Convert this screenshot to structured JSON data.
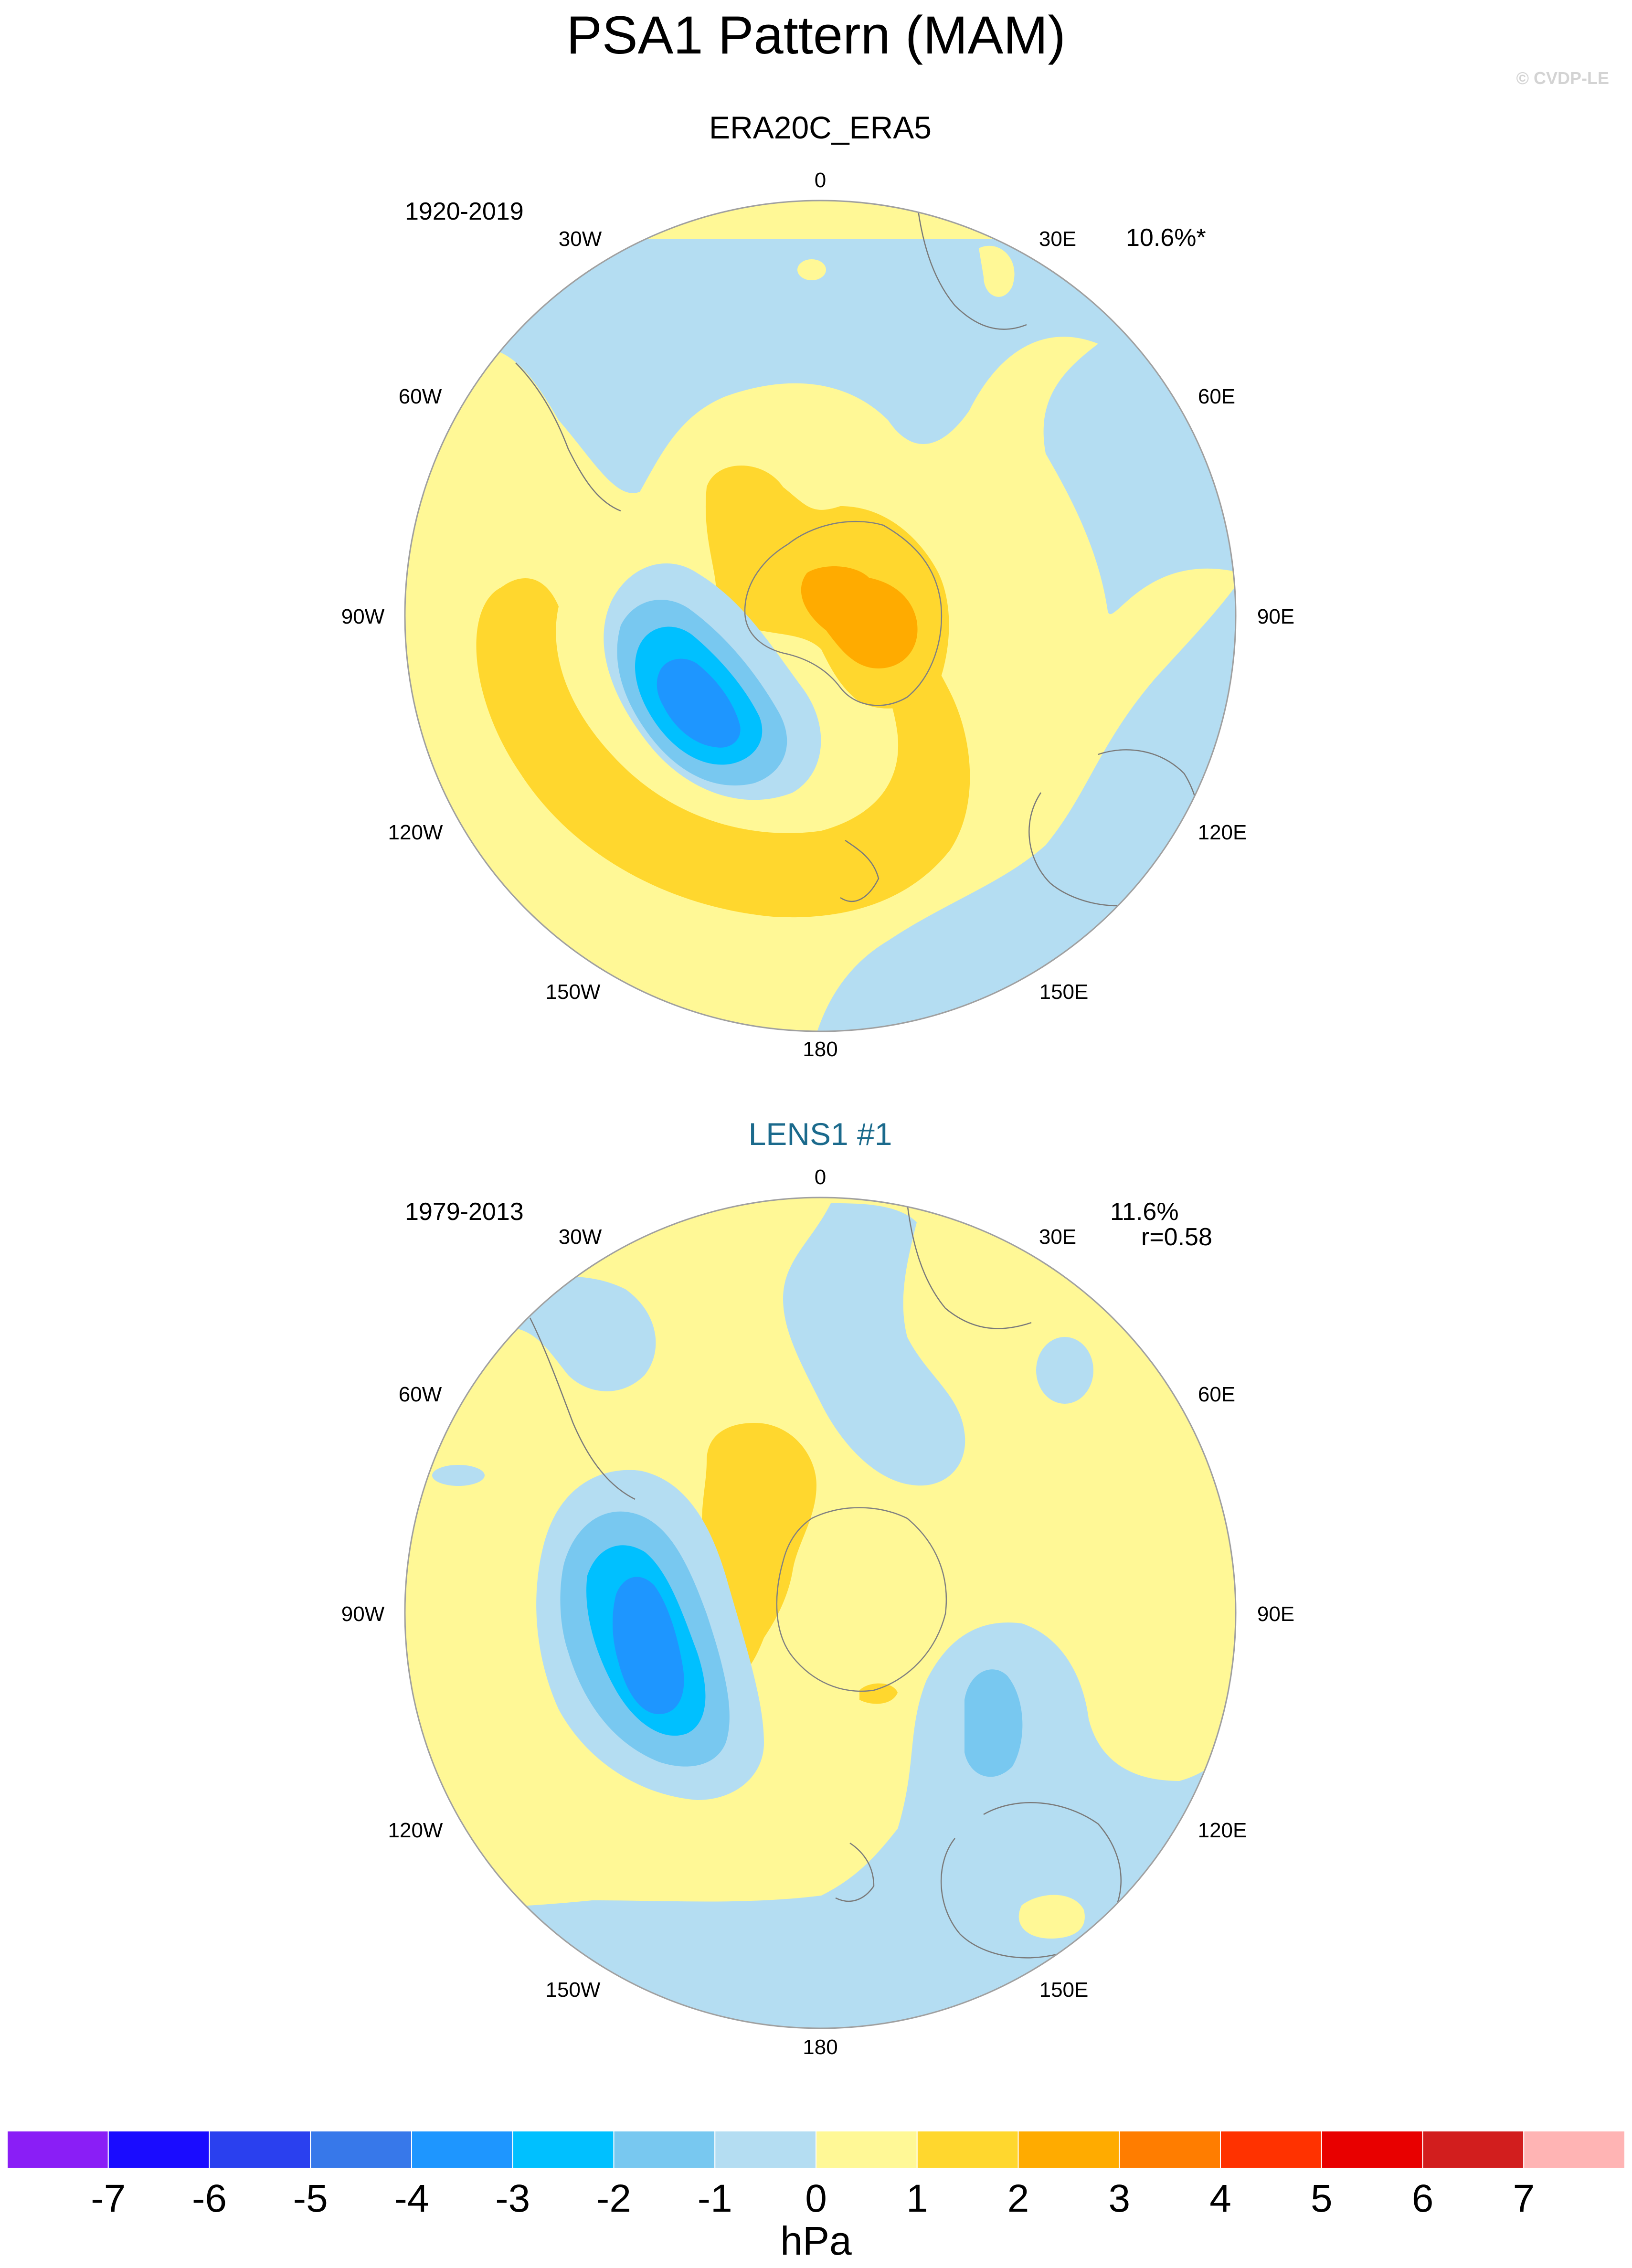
{
  "title": "PSA1 Pattern (MAM)",
  "watermark": "© CVDP-LE",
  "colors": {
    "lev_m1": "#b4ddf2",
    "lev_m2": "#78c8f0",
    "lev_m3": "#00c0ff",
    "lev_m4": "#1e96ff",
    "lev_p1": "#fff896",
    "lev_p2": "#ffd72e",
    "lev_p3": "#ffab00",
    "coastline": "#808080",
    "model_title": "#1b6a8c"
  },
  "panels": [
    {
      "title": "ERA20C_ERA5",
      "period": "1920-2019",
      "variance": "10.6%*",
      "correlation": "",
      "lon_labels": {
        "n0": "0",
        "n30e": "30E",
        "n60e": "60E",
        "n90e": "90E",
        "n120e": "120E",
        "n150e": "150E",
        "n180": "180",
        "n150w": "150W",
        "n120w": "120W",
        "n90w": "90W",
        "n60w": "60W",
        "n30w": "30W"
      }
    },
    {
      "title": "LENS1 #1",
      "period": "1979-2013",
      "variance": "11.6%",
      "correlation": "r=0.58",
      "lon_labels": {
        "n0": "0",
        "n30e": "30E",
        "n60e": "60E",
        "n90e": "90E",
        "n120e": "120E",
        "n150e": "150E",
        "n180": "180",
        "n150w": "150W",
        "n120w": "120W",
        "n90w": "90W",
        "n60w": "60W",
        "n30w": "30W"
      }
    }
  ],
  "colorbar": {
    "unit": "hPa",
    "tick_labels": [
      "-7",
      "-6",
      "-5",
      "-4",
      "-3",
      "-2",
      "-1",
      "0",
      "1",
      "2",
      "3",
      "4",
      "5",
      "6",
      "7"
    ],
    "colors": [
      "#8a1ef6",
      "#1a0cff",
      "#2a40ef",
      "#3778ea",
      "#1e96ff",
      "#00c0ff",
      "#78c8f0",
      "#b4ddf2",
      "#fff896",
      "#ffd72e",
      "#ffab00",
      "#ff7d00",
      "#ff3200",
      "#e80000",
      "#d21e1e",
      "#ffb4b4"
    ]
  }
}
